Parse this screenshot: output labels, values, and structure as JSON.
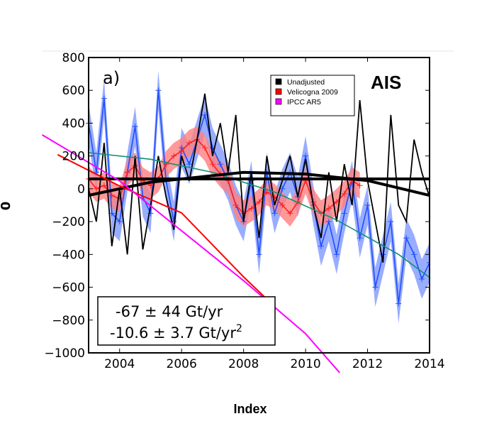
{
  "chart_data": {
    "type": "line",
    "panel_label": "a)",
    "region_label": "AIS",
    "xlabel": "Index",
    "ylabel": "0",
    "xlim": [
      2003,
      2014
    ],
    "ylim": [
      -1000,
      800
    ],
    "xticks": [
      2004,
      2006,
      2008,
      2010,
      2012,
      2014
    ],
    "yticks": [
      800,
      600,
      400,
      200,
      0,
      -200,
      -400,
      -600,
      -800,
      -1000
    ],
    "legend": {
      "placement": "top-center-right",
      "entries": [
        {
          "label": "Unadjusted",
          "color": "#000000"
        },
        {
          "label": "Velicogna 2009",
          "color": "#ff0000"
        },
        {
          "label": "IPCC AR5",
          "color": "#ff00ff"
        }
      ]
    },
    "annotation": {
      "line1": "-67 ± 44 Gt/yr",
      "line2": "-10.6 ± 3.7 Gt/yr",
      "line2_sup": "2"
    },
    "series": [
      {
        "label": "Unadjusted",
        "color": "#000000",
        "x_start": 2003,
        "x_step": 0.25,
        "values": [
          0,
          -200,
          280,
          -350,
          0,
          -400,
          200,
          -370,
          -100,
          200,
          -50,
          -250,
          200,
          50,
          300,
          580,
          200,
          400,
          100,
          450,
          -200,
          100,
          -300,
          200,
          -100,
          50,
          200,
          -50,
          180,
          -100,
          -300,
          100,
          -200,
          150,
          -100,
          540,
          50,
          -200,
          -450,
          450,
          -100,
          -200,
          300,
          100,
          -50
        ]
      },
      {
        "color": "#1f4fff",
        "band_color": "#7f98ff",
        "band": 120,
        "x_start": 2003,
        "x_step": 0.25,
        "values": [
          400,
          100,
          550,
          -150,
          -200,
          100,
          380,
          -50,
          -150,
          600,
          50,
          -200,
          250,
          150,
          300,
          450,
          250,
          150,
          50,
          -100,
          -200,
          50,
          -400,
          100,
          -150,
          0,
          100,
          -50,
          200,
          -100,
          -350,
          -200,
          -400,
          -150,
          50,
          -300,
          -100,
          -600,
          -400,
          -200,
          -700,
          -300,
          -400,
          -550,
          -450
        ]
      },
      {
        "color": "#ff2020",
        "band_color": "#ff8080",
        "band": 80,
        "x_start": 2003,
        "x_step": 0.25,
        "values": [
          60,
          0,
          20,
          -40,
          -60,
          100,
          140,
          50,
          20,
          60,
          150,
          200,
          230,
          280,
          300,
          250,
          150,
          90,
          50,
          -100,
          -150,
          -120,
          -80,
          -20,
          -50,
          -100,
          -150,
          -80,
          50,
          -80,
          -150,
          -120,
          -80,
          -30,
          50,
          20
        ]
      },
      {
        "color": "#109070",
        "x": [
          2003,
          2005,
          2007,
          2009,
          2011,
          2013,
          2014
        ],
        "values": [
          220,
          180,
          100,
          -20,
          -190,
          -400,
          -540
        ]
      },
      {
        "color": "#000000",
        "x": [
          2003,
          2014
        ],
        "values": [
          60,
          60
        ]
      },
      {
        "color": "#000000",
        "x": [
          2003,
          2005,
          2008,
          2010,
          2012,
          2014
        ],
        "values": [
          -40,
          40,
          100,
          90,
          50,
          -40
        ]
      },
      {
        "label": "Velicogna 2009",
        "color": "#ff0000",
        "x": [
          2002,
          2004,
          2006,
          2008,
          2009
        ],
        "values": [
          208,
          17,
          -147,
          -537,
          -718
        ]
      },
      {
        "label": "IPCC AR5",
        "color": "#ff00ff",
        "x": [
          2001.5,
          2004,
          2008,
          2010,
          2011.1
        ],
        "values": [
          329,
          48,
          -560,
          -883,
          -1121
        ]
      }
    ]
  }
}
